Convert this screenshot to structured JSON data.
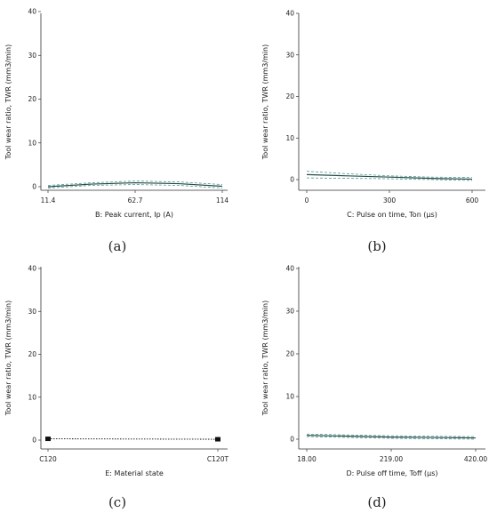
{
  "chart_data": [
    {
      "panel": "(a)",
      "type": "line",
      "xlabel": "B: Peak current, Ip (A)",
      "ylabel": "Tool wear ratio, TWR (mm3/min)",
      "ylim": [
        0,
        40
      ],
      "yticks": [
        0,
        10,
        20,
        30,
        40
      ],
      "xlim": [
        11.4,
        114
      ],
      "xticks": [
        11.4,
        62.7,
        114
      ],
      "xtick_labels": [
        "11.4",
        "62.7",
        "114"
      ],
      "x": [
        11.4,
        37.05,
        62.7,
        88.35,
        114
      ],
      "series": [
        {
          "role": "upper",
          "style": "dashed",
          "values": [
            0.3,
            0.9,
            1.3,
            1.1,
            0.5
          ]
        },
        {
          "role": "mean",
          "style": "solid",
          "values": [
            0.0,
            0.6,
            0.9,
            0.7,
            0.1
          ]
        },
        {
          "role": "lower",
          "style": "dashed",
          "values": [
            -0.3,
            0.3,
            0.5,
            0.3,
            -0.3
          ]
        }
      ]
    },
    {
      "panel": "(b)",
      "type": "line",
      "xlabel": "C: Pulse on time, Ton (µs)",
      "ylabel": "Tool wear ratio, TWR (mm3/min)",
      "ylim": [
        0,
        40
      ],
      "yticks": [
        0,
        10,
        20,
        30,
        40
      ],
      "xlim": [
        0,
        600
      ],
      "xticks": [
        0,
        300,
        600
      ],
      "xtick_labels": [
        "0",
        "300",
        "600"
      ],
      "x": [
        0,
        150,
        300,
        450,
        600
      ],
      "series": [
        {
          "role": "upper",
          "style": "dashed",
          "values": [
            2.0,
            1.4,
            0.9,
            0.6,
            0.5
          ]
        },
        {
          "role": "mean",
          "style": "solid",
          "values": [
            1.2,
            0.9,
            0.6,
            0.3,
            0.1
          ]
        },
        {
          "role": "lower",
          "style": "dashed",
          "values": [
            0.4,
            0.3,
            0.2,
            0.0,
            -0.2
          ]
        }
      ]
    },
    {
      "panel": "(c)",
      "type": "line",
      "xlabel": "E: Material state",
      "ylabel": "Tool wear ratio, TWR (mm3/min)",
      "ylim": [
        0,
        40
      ],
      "yticks": [
        0,
        10,
        20,
        30,
        40
      ],
      "categories": [
        "C120",
        "C120T"
      ],
      "series": [
        {
          "role": "mean",
          "style": "dotted",
          "values": [
            0.3,
            0.2
          ]
        }
      ]
    },
    {
      "panel": "(d)",
      "type": "line",
      "xlabel": "D: Pulse off time, Toff (µs)",
      "ylabel": "Tool wear ratio, TWR (mm3/min)",
      "ylim": [
        0,
        40
      ],
      "yticks": [
        0,
        10,
        20,
        30,
        40
      ],
      "xlim": [
        18,
        420
      ],
      "xticks": [
        18,
        219,
        420
      ],
      "xtick_labels": [
        "18.00",
        "219.00",
        "420.00"
      ],
      "x": [
        18,
        118.5,
        219,
        319.5,
        420
      ],
      "series": [
        {
          "role": "upper",
          "style": "dashed",
          "values": [
            1.2,
            1.0,
            0.8,
            0.7,
            0.6
          ]
        },
        {
          "role": "mean",
          "style": "solid",
          "values": [
            0.9,
            0.7,
            0.5,
            0.4,
            0.3
          ]
        },
        {
          "role": "lower",
          "style": "dashed",
          "values": [
            0.6,
            0.4,
            0.2,
            0.1,
            0.0
          ]
        }
      ]
    }
  ],
  "colors": {
    "mean": "#2a4a48",
    "band": "#4a9a90",
    "axis": "#333333",
    "marker": "#111111"
  }
}
